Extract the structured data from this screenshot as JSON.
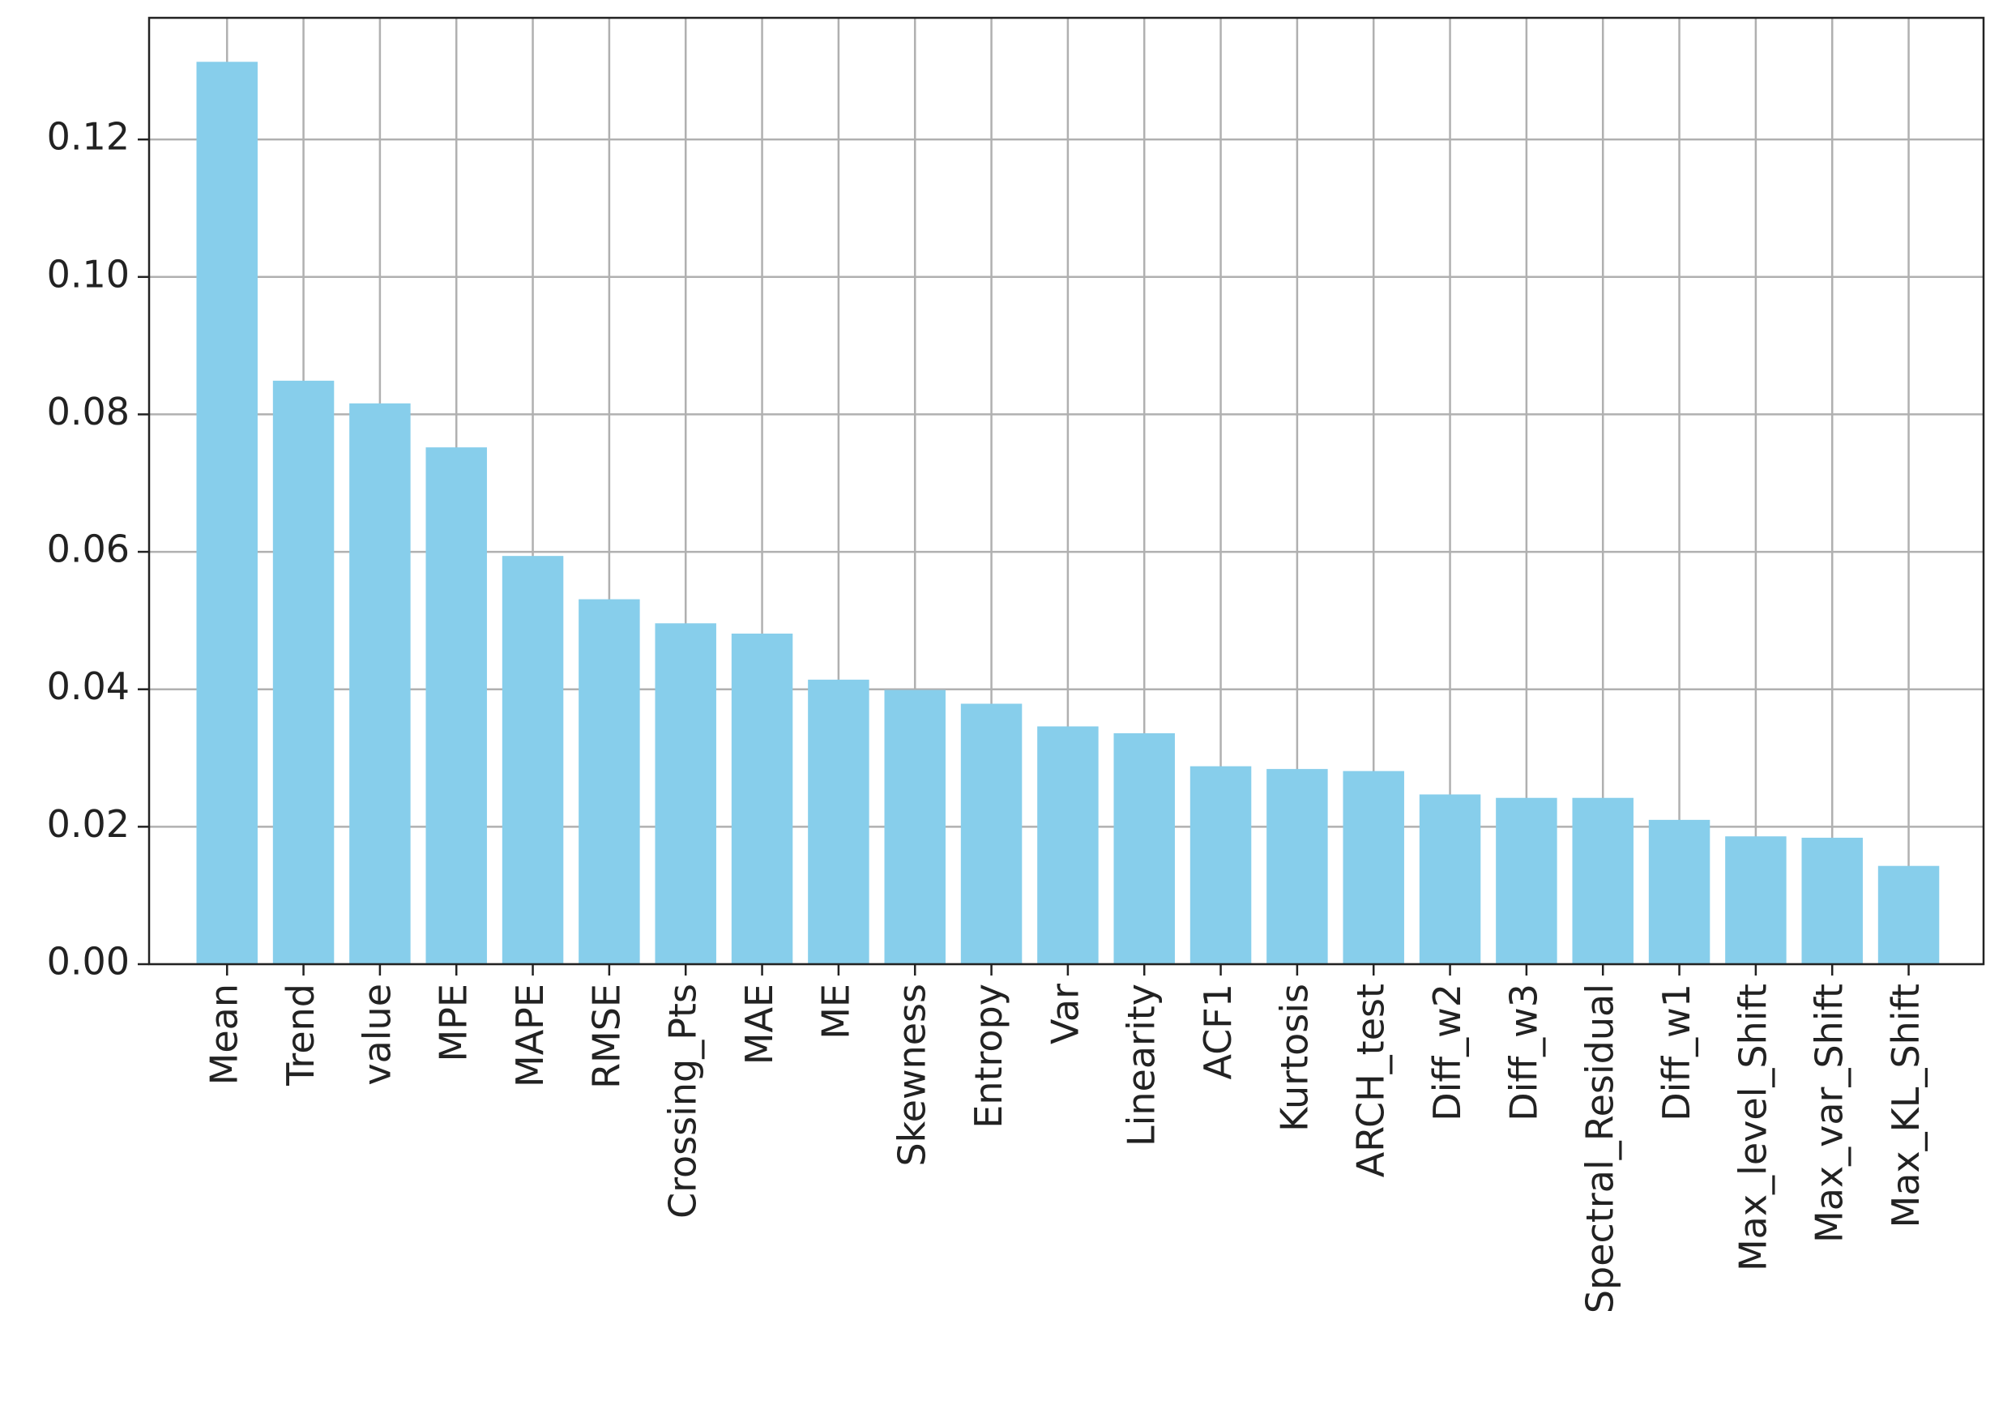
{
  "chart_data": {
    "type": "bar",
    "categories": [
      "Mean",
      "Trend",
      "value",
      "MPE",
      "MAPE",
      "RMSE",
      "Crossing_Pts",
      "MAE",
      "ME",
      "Skewness",
      "Entropy",
      "Var",
      "Linearity",
      "ACF1",
      "Kurtosis",
      "ARCH_test",
      "Diff_w2",
      "Diff_w3",
      "Spectral_Residual",
      "Diff_w1",
      "Max_level_Shift",
      "Max_var_Shift",
      "Max_KL_Shift"
    ],
    "values": [
      0.1313,
      0.0849,
      0.0816,
      0.0752,
      0.0594,
      0.0531,
      0.0496,
      0.0481,
      0.0414,
      0.0399,
      0.0379,
      0.0346,
      0.0336,
      0.0288,
      0.0284,
      0.0281,
      0.0247,
      0.0242,
      0.0242,
      0.021,
      0.0186,
      0.0184,
      0.0143
    ],
    "color": "#87ceeb",
    "ylim": [
      0,
      0.1377
    ],
    "yticks": [
      {
        "value": 0,
        "label": "0.00"
      },
      {
        "value": 0.02,
        "label": "0.02"
      },
      {
        "value": 0.04,
        "label": "0.04"
      },
      {
        "value": 0.06,
        "label": "0.06"
      },
      {
        "value": 0.08,
        "label": "0.08"
      },
      {
        "value": 0.1,
        "label": "0.10"
      },
      {
        "value": 0.12,
        "label": "0.12"
      }
    ],
    "grid": true
  }
}
